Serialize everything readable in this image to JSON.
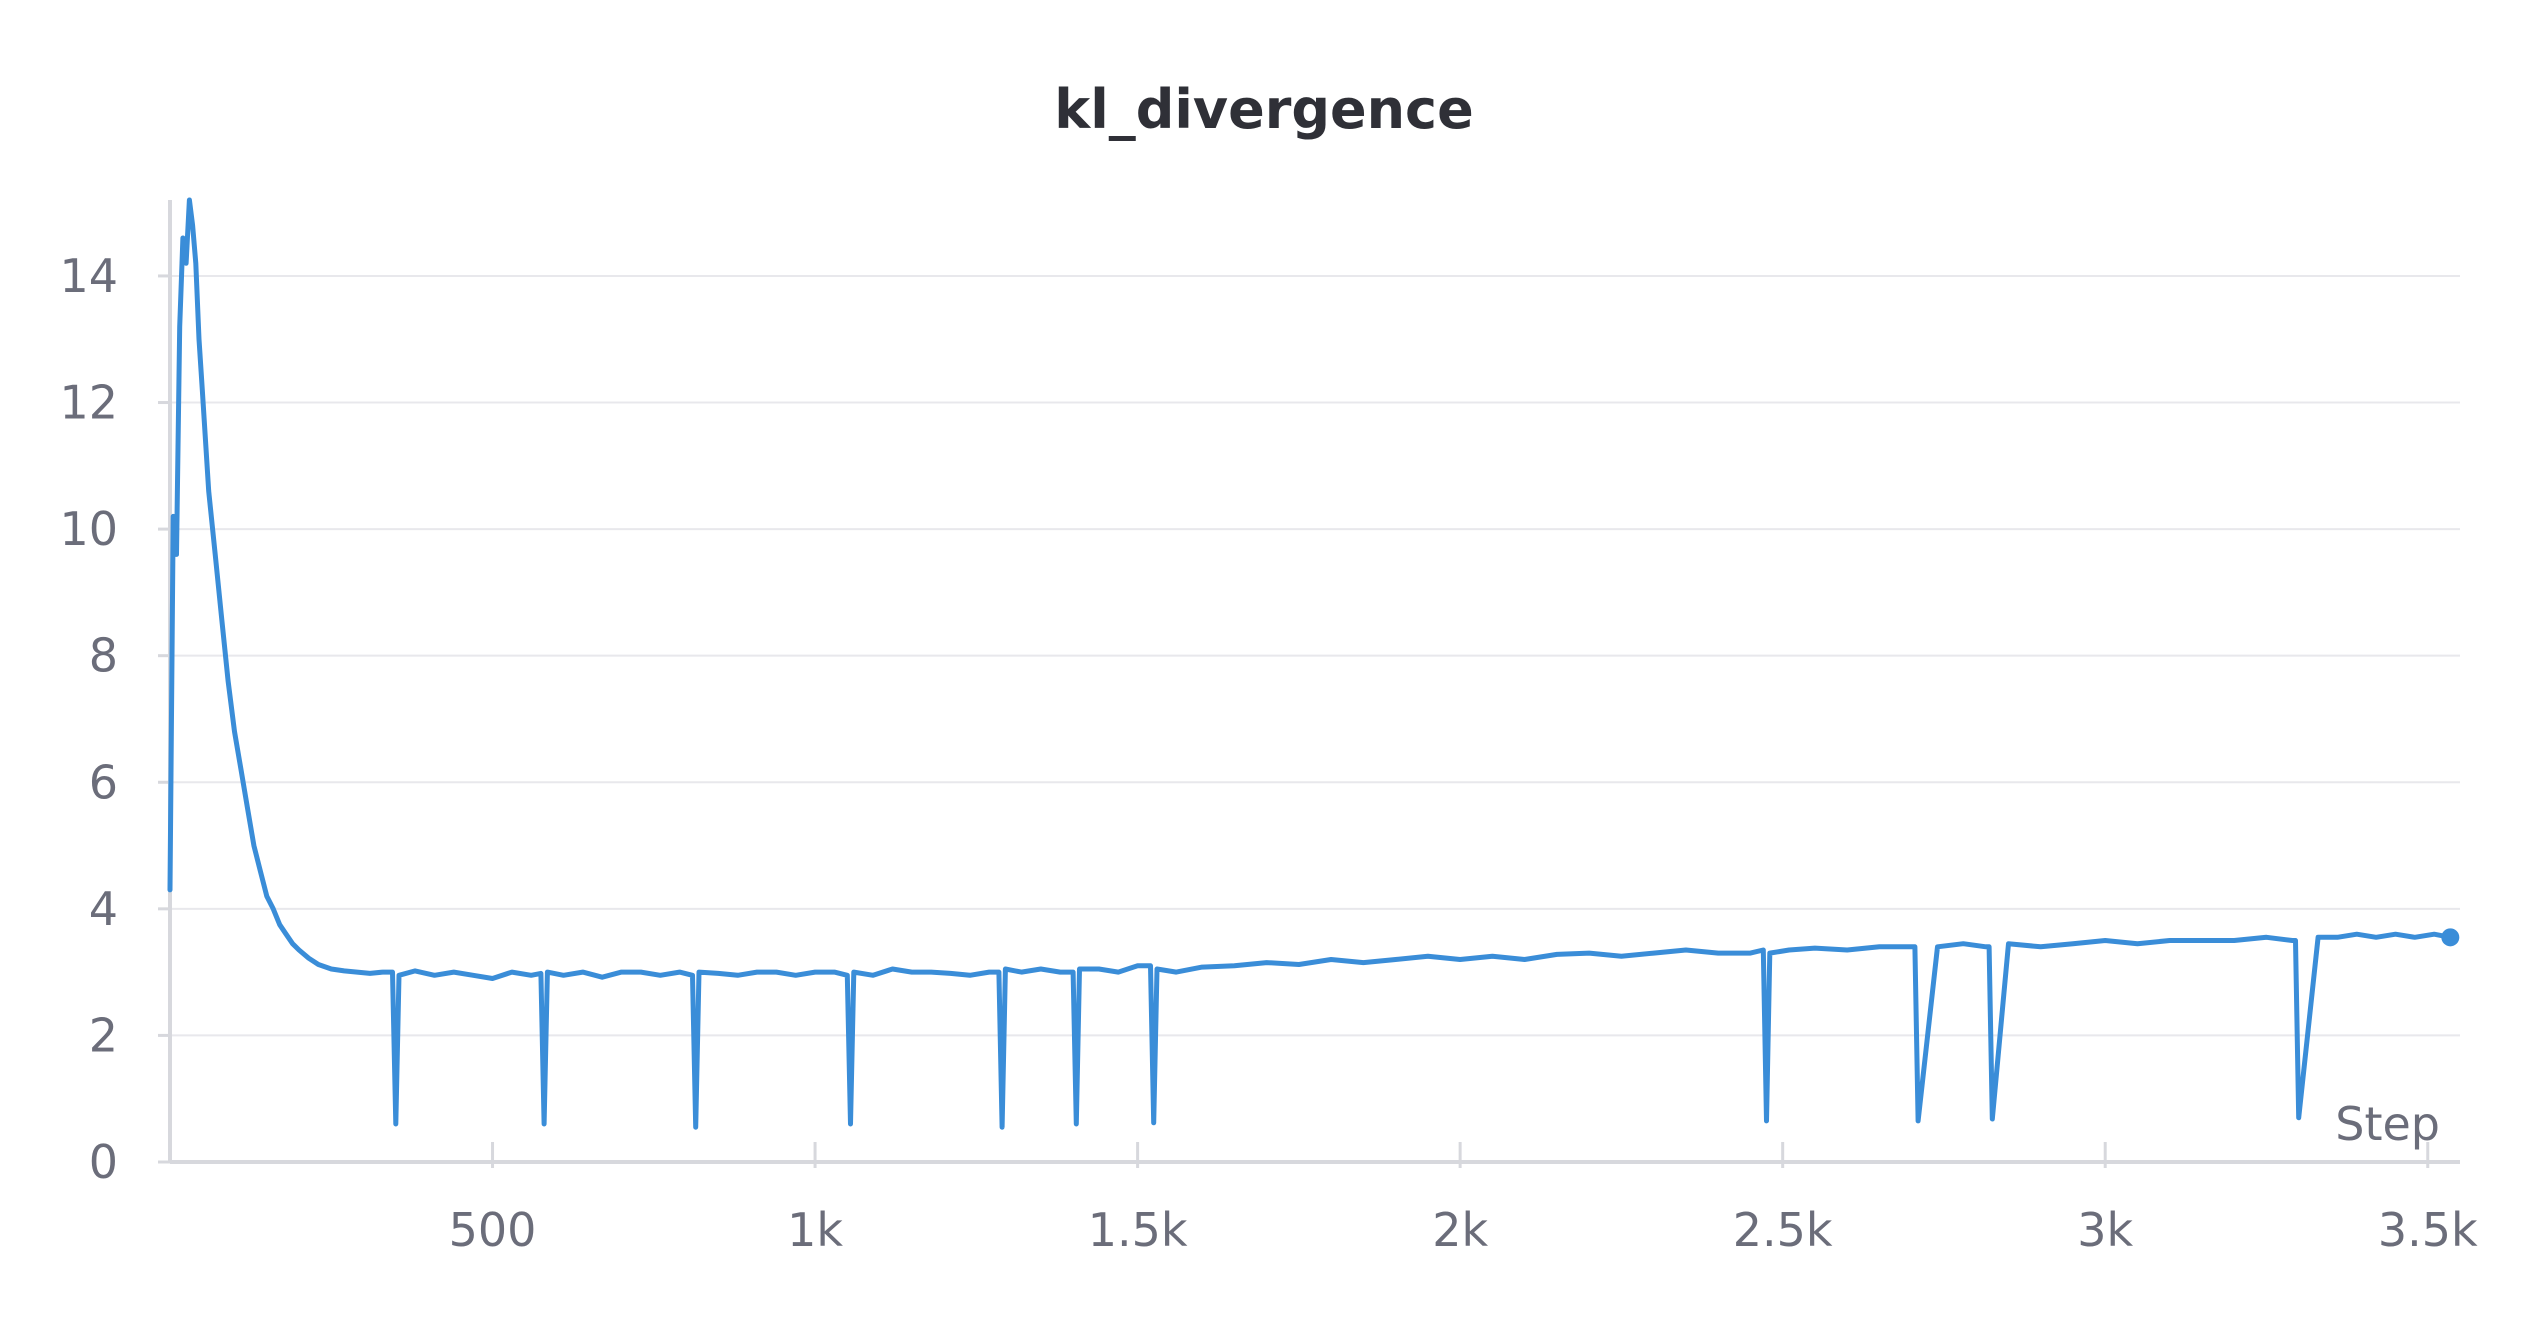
{
  "chart_data": {
    "type": "line",
    "title": "kl_divergence",
    "xlabel": "Step",
    "ylabel": "",
    "xlim": [
      0,
      3550
    ],
    "ylim": [
      0,
      15.2
    ],
    "x_ticks": [
      500,
      1000,
      1500,
      2000,
      2500,
      3000,
      3500
    ],
    "x_tick_labels": [
      "500",
      "1k",
      "1.5k",
      "2k",
      "2.5k",
      "3k",
      "3.5k"
    ],
    "y_ticks": [
      0,
      2,
      4,
      6,
      8,
      10,
      12,
      14
    ],
    "y_tick_labels": [
      "0",
      "2",
      "4",
      "6",
      "8",
      "10",
      "12",
      "14"
    ],
    "grid": true,
    "legend": "none",
    "series": [
      {
        "color": "#3a8dd8",
        "x": [
          0,
          5,
          10,
          15,
          20,
          25,
          30,
          35,
          40,
          45,
          50,
          60,
          70,
          80,
          90,
          100,
          110,
          120,
          130,
          140,
          150,
          160,
          170,
          180,
          190,
          200,
          215,
          230,
          250,
          270,
          290,
          310,
          330,
          345,
          350,
          355,
          380,
          410,
          440,
          470,
          500,
          530,
          560,
          575,
          580,
          585,
          610,
          640,
          670,
          700,
          730,
          760,
          790,
          810,
          815,
          820,
          850,
          880,
          910,
          940,
          970,
          1000,
          1030,
          1050,
          1055,
          1060,
          1090,
          1120,
          1150,
          1180,
          1210,
          1240,
          1270,
          1285,
          1290,
          1295,
          1320,
          1350,
          1380,
          1400,
          1405,
          1410,
          1440,
          1470,
          1500,
          1520,
          1525,
          1530,
          1560,
          1600,
          1650,
          1700,
          1750,
          1800,
          1850,
          1900,
          1950,
          2000,
          2050,
          2100,
          2150,
          2200,
          2250,
          2300,
          2350,
          2400,
          2450,
          2470,
          2475,
          2480,
          2510,
          2550,
          2600,
          2650,
          2700,
          2705,
          2710,
          2740,
          2780,
          2815,
          2820,
          2825,
          2850,
          2900,
          2950,
          3000,
          3050,
          3100,
          3150,
          3200,
          3250,
          3290,
          3295,
          3300,
          3330,
          3360,
          3390,
          3420,
          3450,
          3480,
          3510,
          3535
        ],
        "y": [
          4.3,
          10.2,
          9.6,
          13.2,
          14.6,
          14.2,
          15.2,
          14.8,
          14.2,
          13.0,
          12.2,
          10.6,
          9.6,
          8.6,
          7.6,
          6.8,
          6.2,
          5.6,
          5.0,
          4.6,
          4.2,
          4.0,
          3.75,
          3.6,
          3.45,
          3.35,
          3.22,
          3.12,
          3.05,
          3.02,
          3.0,
          2.98,
          3.0,
          3.0,
          0.6,
          2.95,
          3.02,
          2.95,
          3.0,
          2.95,
          2.9,
          3.0,
          2.95,
          2.98,
          0.6,
          3.0,
          2.95,
          3.0,
          2.92,
          3.0,
          3.0,
          2.95,
          3.0,
          2.95,
          0.55,
          3.0,
          2.98,
          2.95,
          3.0,
          3.0,
          2.95,
          3.0,
          3.0,
          2.95,
          0.6,
          3.0,
          2.95,
          3.05,
          3.0,
          3.0,
          2.98,
          2.95,
          3.0,
          3.0,
          0.55,
          3.05,
          3.0,
          3.05,
          3.0,
          3.0,
          0.6,
          3.05,
          3.05,
          3.0,
          3.1,
          3.1,
          0.62,
          3.05,
          3.0,
          3.08,
          3.1,
          3.15,
          3.12,
          3.2,
          3.15,
          3.2,
          3.25,
          3.2,
          3.25,
          3.2,
          3.28,
          3.3,
          3.25,
          3.3,
          3.35,
          3.3,
          3.3,
          3.35,
          0.65,
          3.3,
          3.35,
          3.38,
          3.35,
          3.4,
          3.4,
          3.4,
          0.65,
          3.4,
          3.45,
          3.4,
          3.4,
          0.68,
          3.45,
          3.4,
          3.45,
          3.5,
          3.45,
          3.5,
          3.5,
          3.5,
          3.55,
          3.5,
          3.5,
          0.7,
          3.55,
          3.55,
          3.6,
          3.55,
          3.6,
          3.55,
          3.6,
          3.55
        ]
      }
    ]
  }
}
